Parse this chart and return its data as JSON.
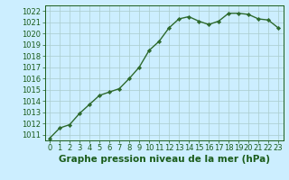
{
  "x": [
    0,
    1,
    2,
    3,
    4,
    5,
    6,
    7,
    8,
    9,
    10,
    11,
    12,
    13,
    14,
    15,
    16,
    17,
    18,
    19,
    20,
    21,
    22,
    23
  ],
  "y": [
    1010.7,
    1011.6,
    1011.9,
    1012.9,
    1013.7,
    1014.5,
    1014.8,
    1015.1,
    1016.0,
    1017.0,
    1018.5,
    1019.3,
    1020.5,
    1021.3,
    1021.5,
    1021.1,
    1020.8,
    1021.1,
    1021.8,
    1021.8,
    1021.7,
    1021.3,
    1021.2,
    1020.5
  ],
  "ylim": [
    1010.5,
    1022.5
  ],
  "xlim": [
    -0.5,
    23.5
  ],
  "yticks": [
    1011,
    1012,
    1013,
    1014,
    1015,
    1016,
    1017,
    1018,
    1019,
    1020,
    1021,
    1022
  ],
  "xticks": [
    0,
    1,
    2,
    3,
    4,
    5,
    6,
    7,
    8,
    9,
    10,
    11,
    12,
    13,
    14,
    15,
    16,
    17,
    18,
    19,
    20,
    21,
    22,
    23
  ],
  "line_color": "#2d6a2d",
  "marker": "D",
  "marker_size": 2.2,
  "bg_color": "#cceeff",
  "grid_color": "#aacccc",
  "xlabel": "Graphe pression niveau de la mer (hPa)",
  "xlabel_color": "#1a5c1a",
  "xlabel_fontsize": 7.5,
  "tick_color": "#1a5c1a",
  "tick_fontsize": 6,
  "line_width": 1.0
}
